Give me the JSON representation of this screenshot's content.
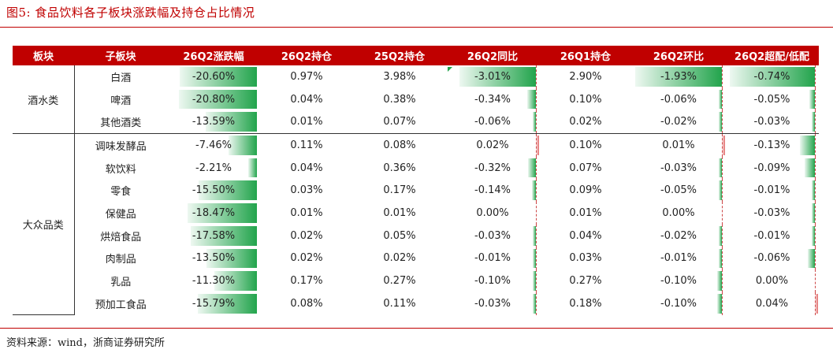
{
  "figure_title": "图5:   食品饮料各子板块涨跌幅及持仓占比情况",
  "source": "资料来源：wind，浙商证券研究所",
  "colors": {
    "header_bg": "#c00000",
    "bar_green": "#22a44c",
    "bar_red": "#e06a6a"
  },
  "headers": [
    "板块",
    "子板块",
    "26Q2涨跌幅",
    "26Q2持仓",
    "25Q2持仓",
    "26Q2同比",
    "26Q1持仓",
    "26Q2环比",
    "26Q2超配/低配"
  ],
  "groups": [
    {
      "name": "酒水类",
      "rows": [
        {
          "sub": "白酒",
          "chg": "-20.60%",
          "h26q2": "0.97%",
          "h25q2": "3.98%",
          "yoy": "-3.01%",
          "h26q1": "2.90%",
          "qoq": "-1.93%",
          "ow": "-0.74%"
        },
        {
          "sub": "啤酒",
          "chg": "-20.80%",
          "h26q2": "0.04%",
          "h25q2": "0.38%",
          "yoy": "-0.34%",
          "h26q1": "0.10%",
          "qoq": "-0.06%",
          "ow": "-0.05%"
        },
        {
          "sub": "其他酒类",
          "chg": "-13.59%",
          "h26q2": "0.01%",
          "h25q2": "0.07%",
          "yoy": "-0.06%",
          "h26q1": "0.02%",
          "qoq": "-0.02%",
          "ow": "-0.03%"
        }
      ]
    },
    {
      "name": "大众品类",
      "rows": [
        {
          "sub": "调味发酵品",
          "chg": "-7.46%",
          "h26q2": "0.11%",
          "h25q2": "0.08%",
          "yoy": "0.02%",
          "h26q1": "0.10%",
          "qoq": "0.01%",
          "ow": "-0.13%"
        },
        {
          "sub": "软饮料",
          "chg": "-2.21%",
          "h26q2": "0.04%",
          "h25q2": "0.36%",
          "yoy": "-0.32%",
          "h26q1": "0.07%",
          "qoq": "-0.03%",
          "ow": "-0.09%"
        },
        {
          "sub": "零食",
          "chg": "-15.50%",
          "h26q2": "0.03%",
          "h25q2": "0.17%",
          "yoy": "-0.14%",
          "h26q1": "0.09%",
          "qoq": "-0.05%",
          "ow": "-0.01%"
        },
        {
          "sub": "保健品",
          "chg": "-18.47%",
          "h26q2": "0.01%",
          "h25q2": "0.01%",
          "yoy": "0.00%",
          "h26q1": "0.01%",
          "qoq": "0.00%",
          "ow": "-0.03%"
        },
        {
          "sub": "烘焙食品",
          "chg": "-17.58%",
          "h26q2": "0.02%",
          "h25q2": "0.05%",
          "yoy": "-0.03%",
          "h26q1": "0.04%",
          "qoq": "-0.02%",
          "ow": "-0.01%"
        },
        {
          "sub": "肉制品",
          "chg": "-13.50%",
          "h26q2": "0.02%",
          "h25q2": "0.02%",
          "yoy": "-0.01%",
          "h26q1": "0.03%",
          "qoq": "-0.01%",
          "ow": "-0.06%"
        },
        {
          "sub": "乳品",
          "chg": "-11.30%",
          "h26q2": "0.17%",
          "h25q2": "0.27%",
          "yoy": "-0.10%",
          "h26q1": "0.27%",
          "qoq": "-0.10%",
          "ow": "0.00%"
        },
        {
          "sub": "预加工食品",
          "chg": "-15.79%",
          "h26q2": "0.08%",
          "h25q2": "0.11%",
          "yoy": "-0.03%",
          "h26q1": "0.18%",
          "qoq": "-0.10%",
          "ow": "0.04%"
        }
      ]
    }
  ]
}
